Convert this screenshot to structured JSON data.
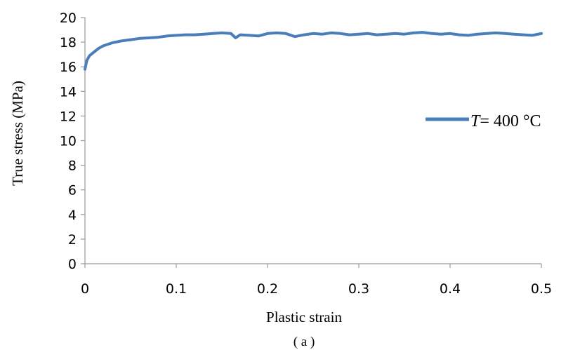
{
  "chart_data": {
    "type": "line",
    "xlabel": "Plastic strain",
    "ylabel": "True stress (MPa)",
    "caption": "( a )",
    "xlim": [
      0,
      0.5
    ],
    "ylim": [
      0,
      20
    ],
    "xticks": [
      0,
      0.1,
      0.2,
      0.3,
      0.4,
      0.5
    ],
    "xtick_labels": [
      "0",
      "0.1",
      "0.2",
      "0.3",
      "0.4",
      "0.5"
    ],
    "yticks": [
      0,
      2,
      4,
      6,
      8,
      10,
      12,
      14,
      16,
      18,
      20
    ],
    "ytick_labels": [
      "0",
      "2",
      "4",
      "6",
      "8",
      "10",
      "12",
      "14",
      "16",
      "18",
      "20"
    ],
    "grid": false,
    "legend_position": "right",
    "legend_italic": "T",
    "legend_rest": "= 400 °C",
    "series": [
      {
        "name": "T= 400 °C",
        "color": "#4a7ebb",
        "x": [
          0,
          0.002,
          0.005,
          0.01,
          0.015,
          0.02,
          0.03,
          0.04,
          0.05,
          0.06,
          0.07,
          0.08,
          0.09,
          0.1,
          0.11,
          0.12,
          0.13,
          0.14,
          0.15,
          0.16,
          0.165,
          0.17,
          0.18,
          0.19,
          0.2,
          0.21,
          0.22,
          0.23,
          0.24,
          0.25,
          0.26,
          0.27,
          0.28,
          0.29,
          0.3,
          0.31,
          0.32,
          0.33,
          0.34,
          0.35,
          0.36,
          0.37,
          0.38,
          0.39,
          0.4,
          0.41,
          0.42,
          0.43,
          0.44,
          0.45,
          0.46,
          0.47,
          0.48,
          0.49,
          0.5
        ],
        "y": [
          15.8,
          16.5,
          16.9,
          17.2,
          17.5,
          17.7,
          17.95,
          18.1,
          18.2,
          18.3,
          18.35,
          18.4,
          18.5,
          18.55,
          18.6,
          18.6,
          18.65,
          18.7,
          18.75,
          18.7,
          18.35,
          18.6,
          18.55,
          18.5,
          18.7,
          18.75,
          18.7,
          18.45,
          18.6,
          18.7,
          18.65,
          18.75,
          18.7,
          18.6,
          18.65,
          18.7,
          18.6,
          18.65,
          18.7,
          18.65,
          18.75,
          18.8,
          18.7,
          18.65,
          18.7,
          18.6,
          18.55,
          18.65,
          18.7,
          18.75,
          18.7,
          18.65,
          18.6,
          18.55,
          18.7
        ]
      }
    ]
  }
}
